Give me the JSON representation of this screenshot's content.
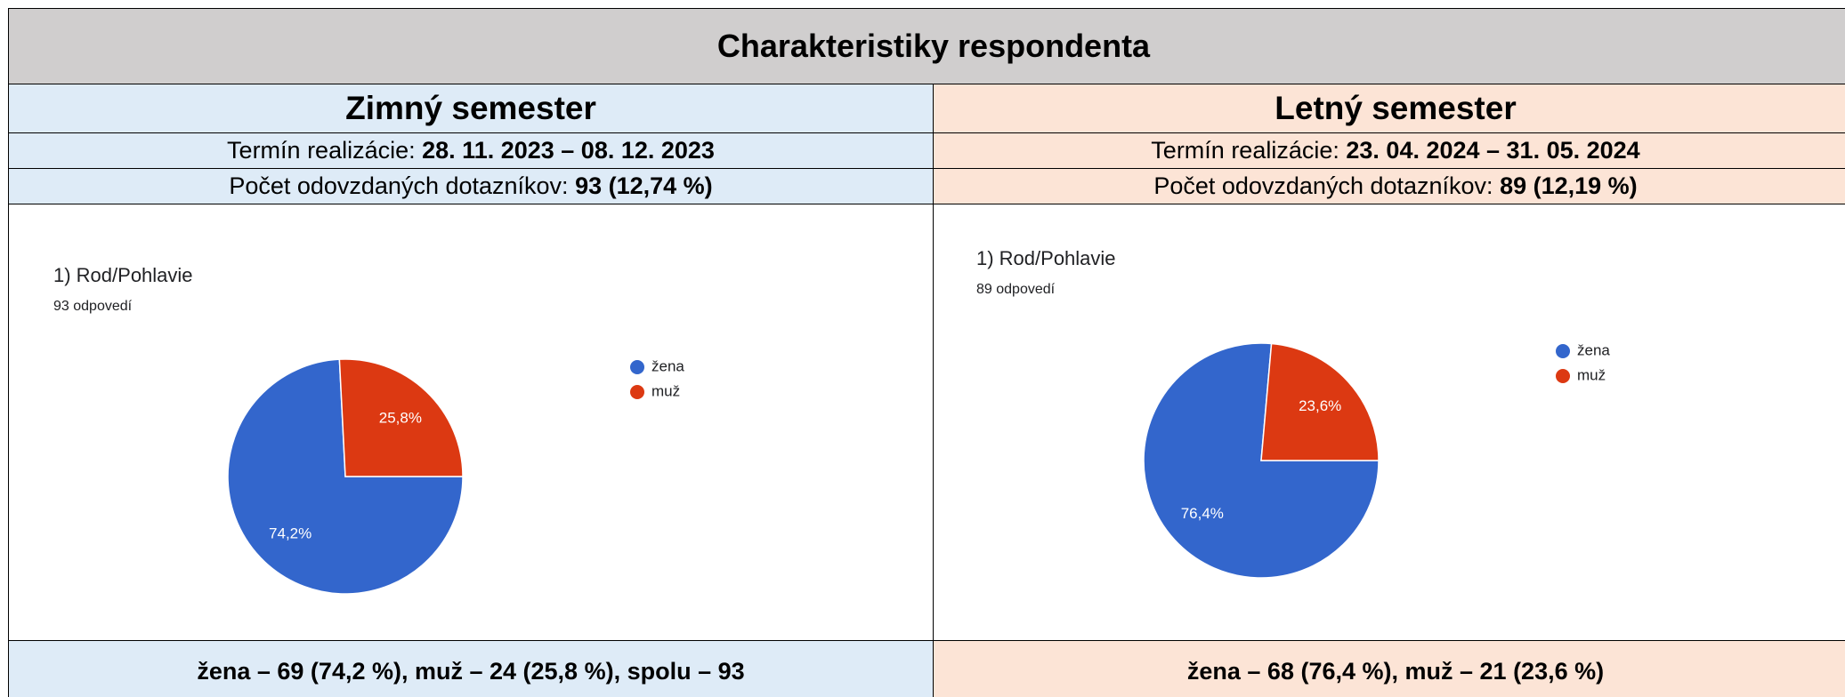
{
  "title": "Charakteristiky respondenta",
  "columns": [
    {
      "heading": "Zimný semester",
      "term_label": "Termín realizácie:",
      "term": "28. 11. 2023 – 08. 12. 2023",
      "count_label": "Počet odovzdaných dotazníkov:",
      "count": "93 (12,74 %)",
      "summary": "žena – 69 (74,2 %), muž – 24 (25,8 %), spolu – 93"
    },
    {
      "heading": "Letný semester",
      "term_label": "Termín realizácie:",
      "term": "23. 04. 2024 – 31. 05. 2024",
      "count_label": "Počet odovzdaných dotazníkov:",
      "count": "89 (12,19 %)",
      "summary": "žena – 68 (76,4 %), muž – 21 (23,6 %)"
    }
  ],
  "chart_data": [
    {
      "type": "pie",
      "title": "1) Rod/Pohlavie",
      "subtitle": "93 odpovedí",
      "categories": [
        "žena",
        "muž"
      ],
      "values": [
        74.2,
        25.8
      ],
      "value_labels": [
        "74,2%",
        "25,8%"
      ],
      "colors": [
        "#3366cc",
        "#dc3912"
      ]
    },
    {
      "type": "pie",
      "title": "1) Rod/Pohlavie",
      "subtitle": "89 odpovedí",
      "categories": [
        "žena",
        "muž"
      ],
      "values": [
        76.4,
        23.6
      ],
      "value_labels": [
        "76,4%",
        "23,6%"
      ],
      "colors": [
        "#3366cc",
        "#dc3912"
      ]
    }
  ]
}
